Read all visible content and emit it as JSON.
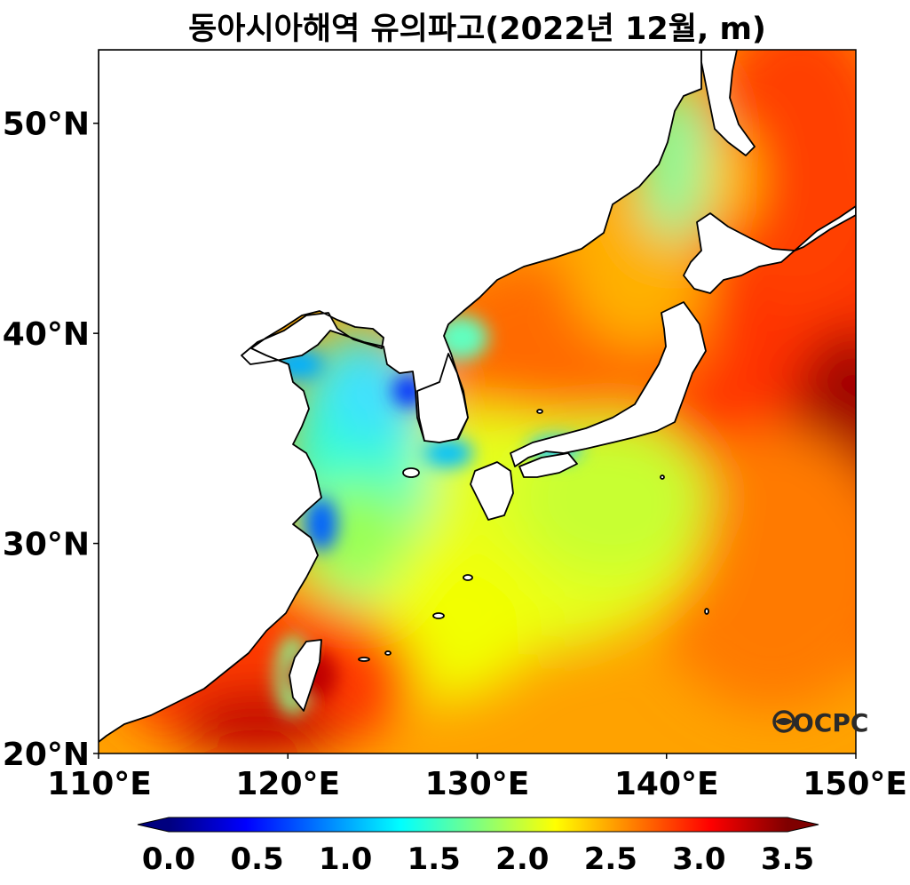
{
  "title": "동아시아해역 유의파고(2022년 12월, m)",
  "map": {
    "lon_range": [
      110,
      150
    ],
    "lat_range": [
      20,
      53.5
    ],
    "lon_ticks": [
      {
        "value": 110,
        "label": "110°E"
      },
      {
        "value": 120,
        "label": "120°E"
      },
      {
        "value": 130,
        "label": "130°E"
      },
      {
        "value": 140,
        "label": "140°E"
      },
      {
        "value": 150,
        "label": "150°E"
      }
    ],
    "lat_ticks": [
      {
        "value": 20,
        "label": "20°N"
      },
      {
        "value": 30,
        "label": "30°N"
      },
      {
        "value": 40,
        "label": "40°N"
      },
      {
        "value": 50,
        "label": "50°N"
      }
    ],
    "variable": "significant wave height",
    "unit": "m",
    "colormap": "jet",
    "land_color": "#ffffff",
    "coastline_color": "#000000"
  },
  "colorbar": {
    "min": 0.0,
    "max": 3.5,
    "extend": "both",
    "ticks": [
      "0.0",
      "0.5",
      "1.0",
      "1.5",
      "2.0",
      "2.5",
      "3.0",
      "3.5"
    ],
    "colors": [
      "#00007f",
      "#0000ff",
      "#007fff",
      "#00ffff",
      "#7fff7f",
      "#ffff00",
      "#ff7f00",
      "#ff0000",
      "#7f0000"
    ]
  },
  "logo": {
    "text": "OCPC"
  }
}
